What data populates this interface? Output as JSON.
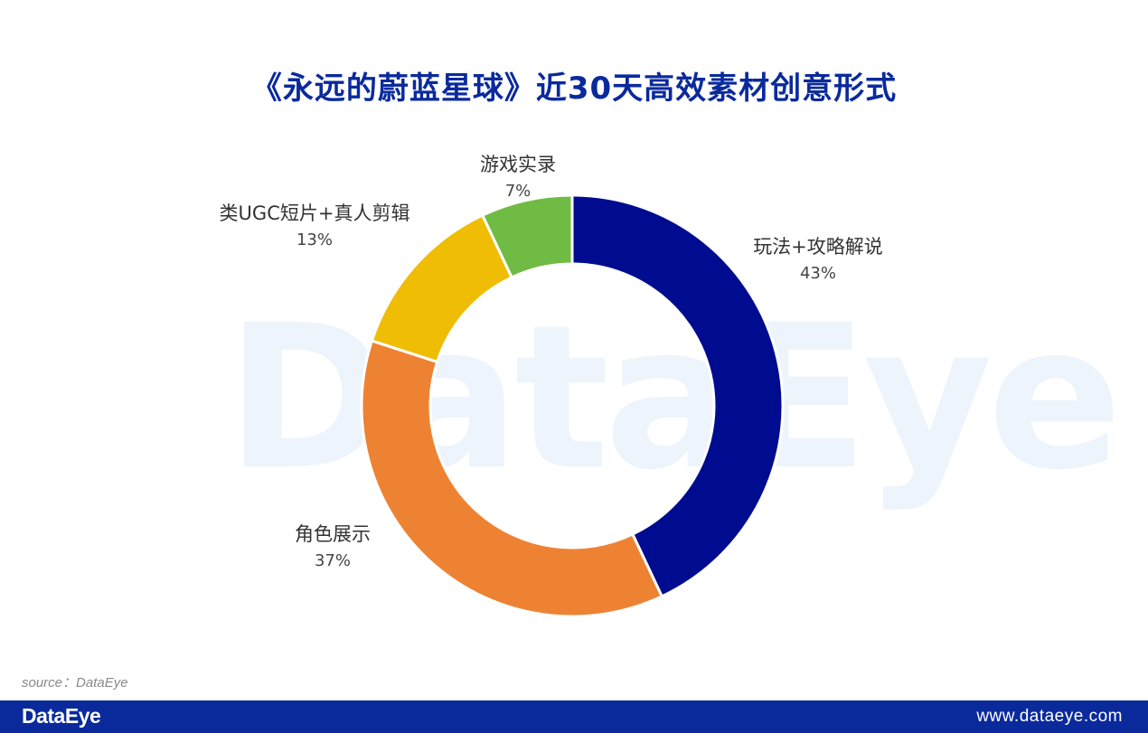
{
  "header": {
    "title": "《永远的蔚蓝星球》近30天高效素材创意形式"
  },
  "watermark": "DataEye",
  "chart_data": {
    "type": "pie",
    "variant": "donut",
    "categories": [
      "玩法+攻略解说",
      "角色展示",
      "类UGC短片+真人剪辑",
      "游戏实录"
    ],
    "values": [
      43,
      37,
      13,
      7
    ],
    "value_labels": [
      "43%",
      "37%",
      "13%",
      "7%"
    ],
    "colors": [
      "#000c8f",
      "#ee8233",
      "#f0bd05",
      "#70bb44"
    ],
    "start_angle": "12 o'clock",
    "direction": "clockwise"
  },
  "source": "source：DataEye",
  "footer": {
    "brand": "DataEye",
    "site": "www.dataeye.com"
  }
}
